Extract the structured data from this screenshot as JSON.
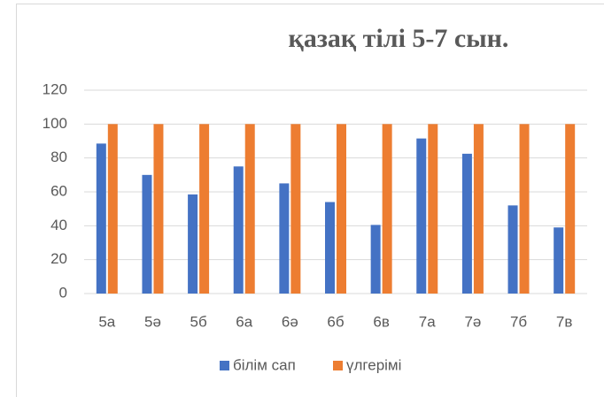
{
  "chart_data": {
    "type": "bar",
    "title": "қазақ тілі   5-7 сын.",
    "categories": [
      "5а",
      "5ә",
      "5б",
      "6а",
      "6ә",
      "6б",
      "6в",
      "7а",
      "7ә",
      "7б",
      "7в"
    ],
    "series": [
      {
        "name": "білім сап",
        "color": "#4472c4",
        "values": [
          88.5,
          70,
          58.5,
          75,
          65,
          54,
          40.5,
          91.5,
          82.5,
          52,
          39
        ]
      },
      {
        "name": "үлгерімі",
        "color": "#ed7d31",
        "values": [
          100,
          100,
          100,
          100,
          100,
          100,
          100,
          100,
          100,
          100,
          100
        ]
      }
    ],
    "ylim": [
      0,
      120
    ],
    "yticks": [
      0,
      20,
      40,
      60,
      80,
      100,
      120
    ],
    "grid": true,
    "legend": "bottom"
  }
}
